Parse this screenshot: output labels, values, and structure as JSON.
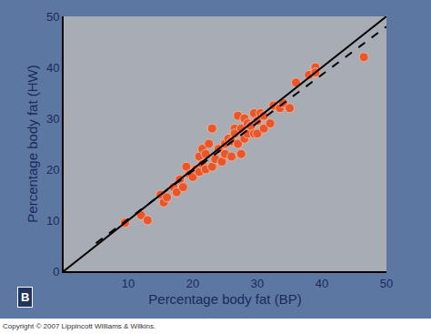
{
  "chart_data": {
    "type": "scatter",
    "x_label": "Percentage body fat (BP)",
    "y_label": "Percentage body fat (HW)",
    "xlim": [
      0,
      50
    ],
    "ylim": [
      0,
      50
    ],
    "xticks": [
      10,
      20,
      30,
      40,
      50
    ],
    "yticks": [
      0,
      10,
      20,
      30,
      40,
      50
    ],
    "grid": false,
    "annotations": [
      "B",
      "Copyright © 2007 Lippincott Williams & Wilkins."
    ],
    "series": [
      {
        "type": "scatter",
        "marker": "circle",
        "color": "#e8562e",
        "x": [
          9.5,
          12,
          13,
          15,
          15.5,
          16,
          17,
          17.5,
          18,
          18.5,
          19,
          19.5,
          20,
          20.5,
          21,
          21,
          21.5,
          21.5,
          22,
          22,
          22.5,
          23,
          23,
          23.5,
          24,
          24.5,
          25,
          25,
          25.5,
          26,
          26,
          26.5,
          26.5,
          27,
          27,
          27.5,
          27.5,
          28,
          28,
          28.5,
          28.5,
          29,
          29.5,
          29.5,
          30,
          30,
          30.5,
          31,
          31,
          32,
          32.5,
          33.5,
          34,
          35,
          36,
          38,
          39,
          39,
          46.5
        ],
        "values": [
          9.5,
          11,
          10,
          15,
          13.5,
          14.5,
          16.5,
          15.5,
          18,
          16.5,
          20.5,
          19,
          18.5,
          20,
          19.5,
          22.5,
          21,
          24,
          23,
          20,
          25,
          20.5,
          28,
          22,
          24,
          21.5,
          25,
          23,
          26,
          22.5,
          25.5,
          28,
          27,
          25,
          30.5,
          23,
          28,
          26,
          30,
          27,
          29,
          28.5,
          31,
          27,
          29.5,
          27,
          31,
          28,
          30.5,
          29,
          32.5,
          32,
          33,
          32,
          37,
          38.5,
          40,
          39,
          42
        ]
      },
      {
        "type": "line",
        "line_style": "solid",
        "color": "#000000",
        "x": [
          0,
          50
        ],
        "values": [
          0,
          50
        ]
      },
      {
        "type": "line",
        "line_style": "dashed",
        "color": "#000000",
        "x": [
          5,
          50
        ],
        "values": [
          5.5,
          48
        ]
      }
    ]
  }
}
